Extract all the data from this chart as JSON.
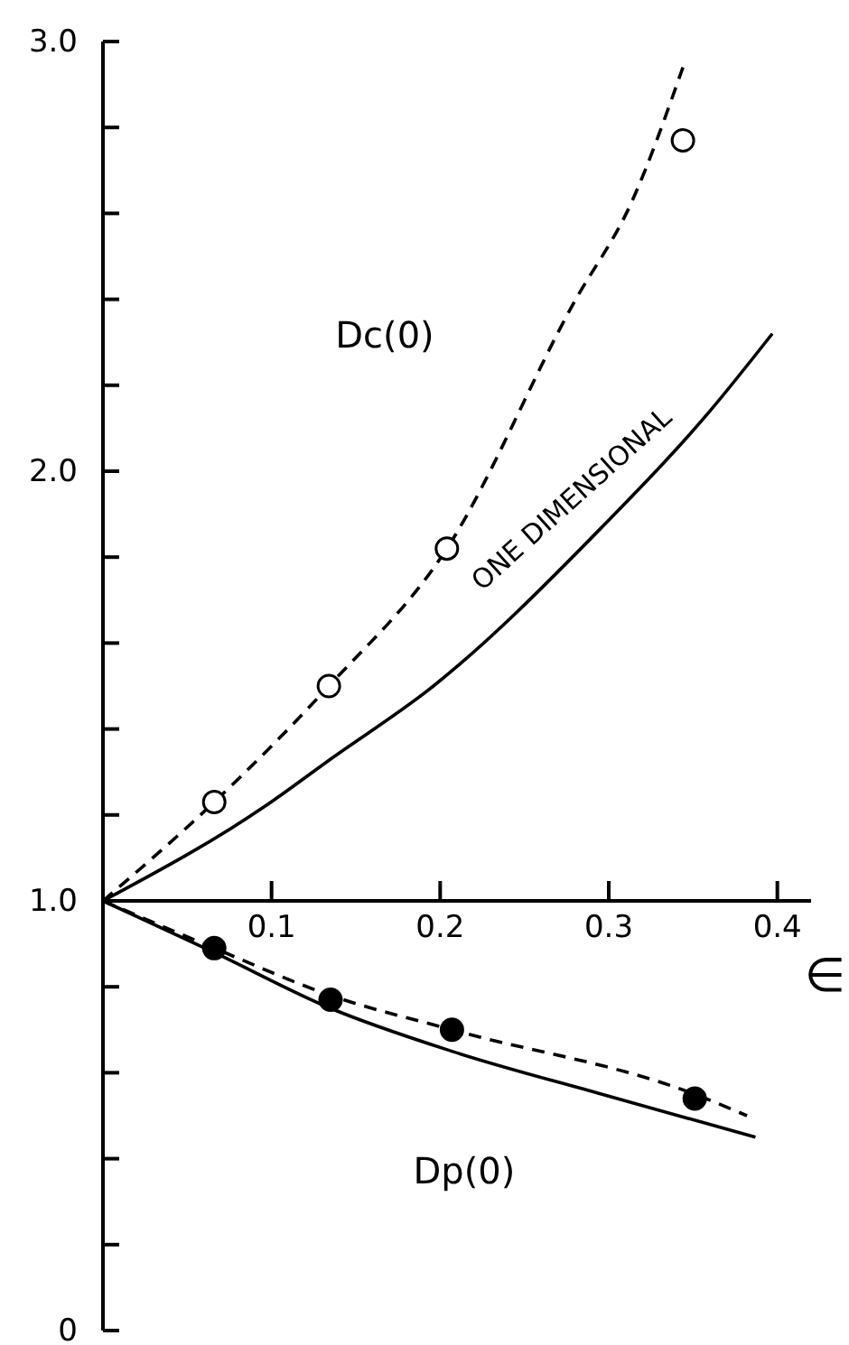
{
  "chart_data": {
    "type": "line",
    "xlabel": "∈",
    "xlim": [
      0,
      0.42
    ],
    "ylim": [
      0,
      3
    ],
    "xticks": [
      0.1,
      0.2,
      0.3,
      0.4
    ],
    "yticks": [
      {
        "value": 0,
        "label": "0"
      },
      {
        "value": 0.2,
        "label": null
      },
      {
        "value": 0.4,
        "label": null
      },
      {
        "value": 0.6,
        "label": null
      },
      {
        "value": 0.8,
        "label": null
      },
      {
        "value": 1,
        "label": "1.0"
      },
      {
        "value": 1.2,
        "label": null
      },
      {
        "value": 1.4,
        "label": null
      },
      {
        "value": 1.6,
        "label": null
      },
      {
        "value": 1.8,
        "label": null
      },
      {
        "value": 2,
        "label": "2.0"
      },
      {
        "value": 2.2,
        "label": null
      },
      {
        "value": 2.4,
        "label": null
      },
      {
        "value": 2.6,
        "label": null
      },
      {
        "value": 2.8,
        "label": null
      },
      {
        "value": 3,
        "label": "3.0"
      }
    ],
    "series": [
      {
        "line_style": "dashed",
        "color": "#000000",
        "x": [
          0,
          0.066,
          0.134,
          0.204,
          0.279,
          0.314,
          0.344
        ],
        "values": [
          1,
          1.23,
          1.5,
          1.82,
          2.39,
          2.63,
          2.94
        ]
      },
      {
        "line_style": "solid",
        "color": "#000000",
        "x": [
          0,
          0.096,
          0.135,
          0.196,
          0.296,
          0.36,
          0.397
        ],
        "values": [
          1,
          1.22,
          1.33,
          1.5,
          1.87,
          2.14,
          2.32
        ]
      },
      {
        "line_style": "dashed",
        "color": "#000000",
        "x": [
          0,
          0.066,
          0.135,
          0.207,
          0.351,
          0.382
        ],
        "values": [
          1,
          0.89,
          0.78,
          0.7,
          0.55,
          0.5
        ]
      },
      {
        "line_style": "solid",
        "color": "#000000",
        "x": [
          0,
          0.066,
          0.135,
          0.207,
          0.296,
          0.387
        ],
        "values": [
          1,
          0.88,
          0.75,
          0.65,
          0.55,
          0.45
        ]
      },
      {
        "type": "scatter",
        "marker": "circle",
        "color": "#ffffff",
        "x": [
          0.066,
          0.134,
          0.204,
          0.344
        ],
        "values": [
          1.23,
          1.5,
          1.82,
          2.77
        ]
      },
      {
        "type": "scatter",
        "marker": "circle",
        "color": "#000000",
        "x": [
          0.066,
          0.135,
          0.207,
          0.351
        ],
        "values": [
          0.89,
          0.77,
          0.7,
          0.54
        ]
      }
    ],
    "annotations": [
      "Dc(0)",
      "ONE DIMENSIONAL",
      "Dp(0)"
    ]
  }
}
